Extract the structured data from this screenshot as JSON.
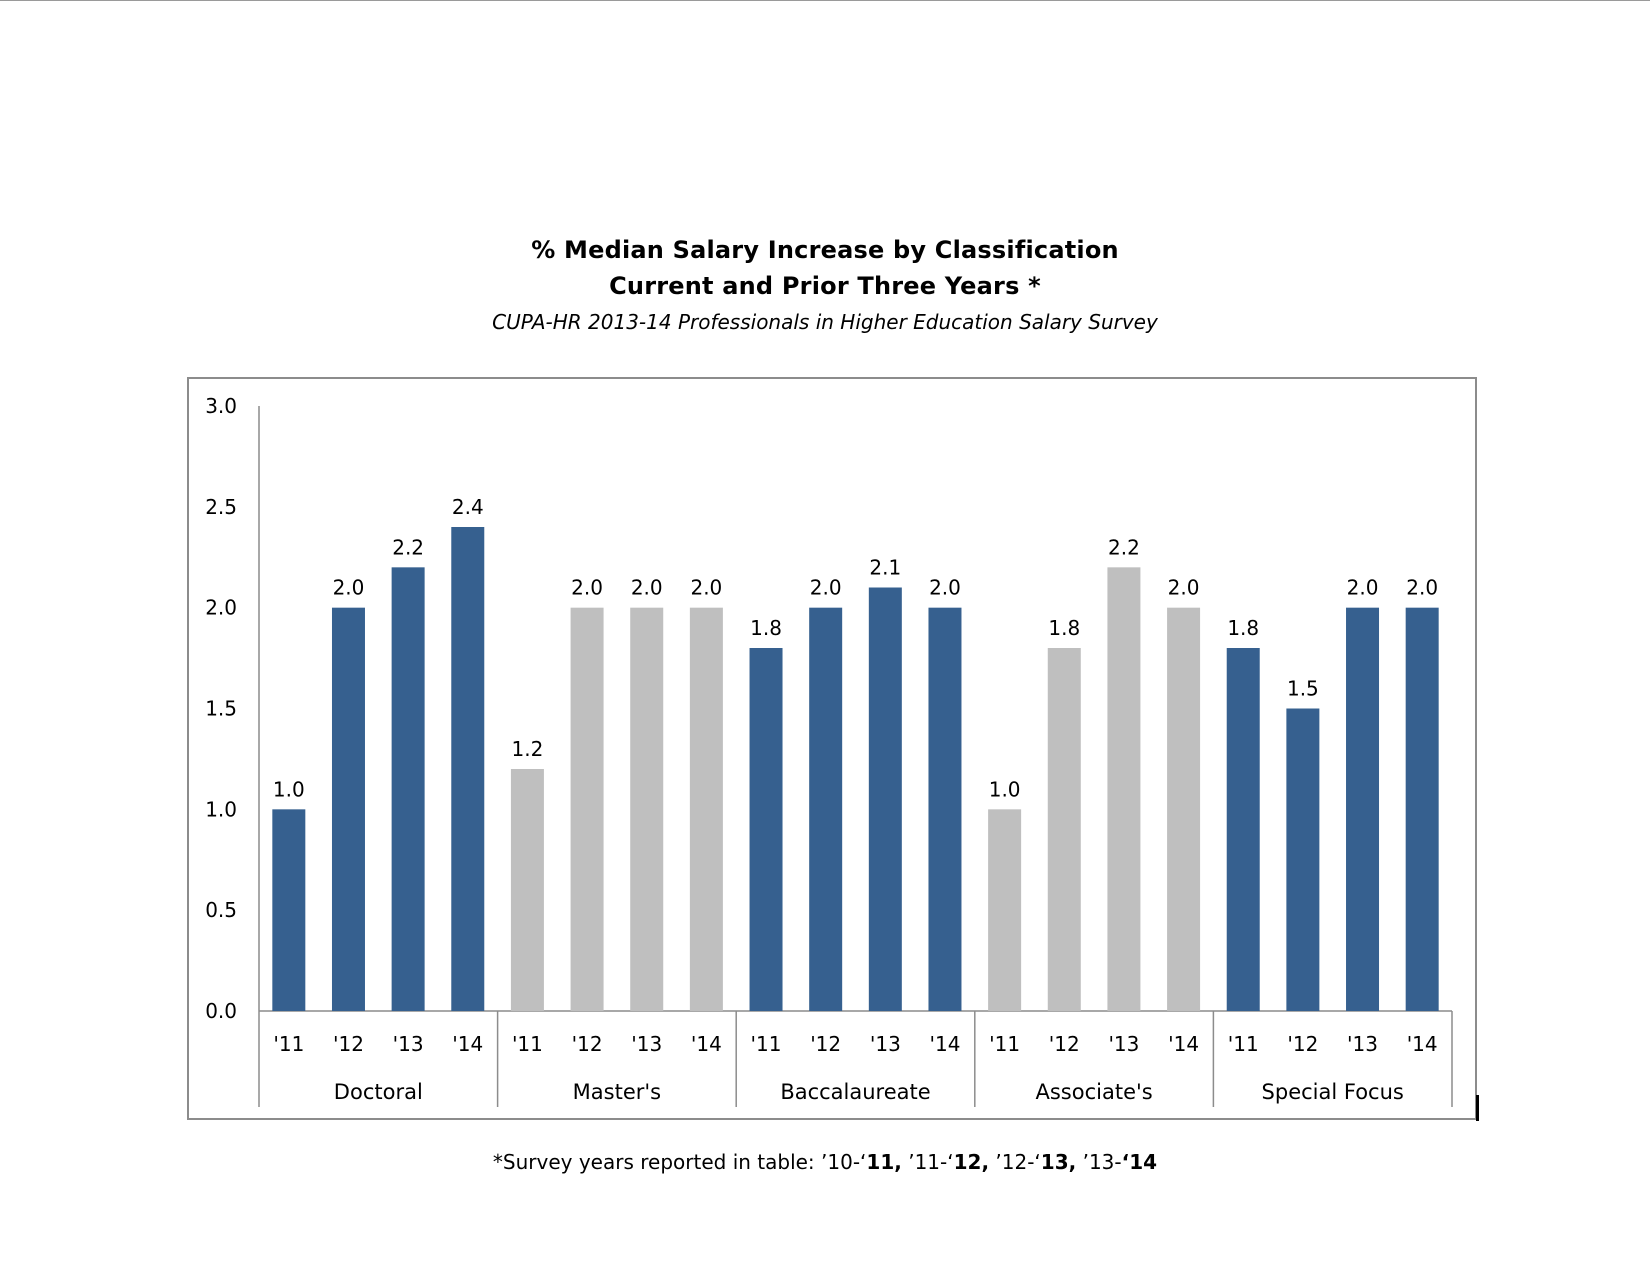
{
  "chart_data": {
    "type": "bar",
    "title_lines": [
      "% Median Salary Increase by Classification",
      "Current and Prior Three Years *"
    ],
    "subtitle": "CUPA-HR 2013-14 Professionals in Higher Education Salary Survey",
    "xlabel": "",
    "ylabel": "",
    "ylim": [
      0,
      3.0
    ],
    "yticks": [
      "0.0",
      "0.5",
      "1.0",
      "1.5",
      "2.0",
      "2.5",
      "3.0"
    ],
    "grid": false,
    "legend": "none",
    "colors": {
      "blue": "#36608f",
      "gray": "#bfbfbf"
    },
    "groups": [
      {
        "name": "Doctoral",
        "bars": [
          {
            "year": "'11",
            "value": 1.0,
            "label": "1.0",
            "color": "blue"
          },
          {
            "year": "'12",
            "value": 2.0,
            "label": "2.0",
            "color": "blue"
          },
          {
            "year": "'13",
            "value": 2.2,
            "label": "2.2",
            "color": "blue"
          },
          {
            "year": "'14",
            "value": 2.4,
            "label": "2.4",
            "color": "blue"
          }
        ]
      },
      {
        "name": "Master's",
        "bars": [
          {
            "year": "'11",
            "value": 1.2,
            "label": "1.2",
            "color": "gray"
          },
          {
            "year": "'12",
            "value": 2.0,
            "label": "2.0",
            "color": "gray"
          },
          {
            "year": "'13",
            "value": 2.0,
            "label": "2.0",
            "color": "gray"
          },
          {
            "year": "'14",
            "value": 2.0,
            "label": "2.0",
            "color": "gray"
          }
        ]
      },
      {
        "name": "Baccalaureate",
        "bars": [
          {
            "year": "'11",
            "value": 1.8,
            "label": "1.8",
            "color": "blue"
          },
          {
            "year": "'12",
            "value": 2.0,
            "label": "2.0",
            "color": "blue"
          },
          {
            "year": "'13",
            "value": 2.1,
            "label": "2.1",
            "color": "blue"
          },
          {
            "year": "'14",
            "value": 2.0,
            "label": "2.0",
            "color": "blue"
          }
        ]
      },
      {
        "name": "Associate's",
        "bars": [
          {
            "year": "'11",
            "value": 1.0,
            "label": "1.0",
            "color": "gray"
          },
          {
            "year": "'12",
            "value": 1.8,
            "label": "1.8",
            "color": "gray"
          },
          {
            "year": "'13",
            "value": 2.2,
            "label": "2.2",
            "color": "gray"
          },
          {
            "year": "'14",
            "value": 2.0,
            "label": "2.0",
            "color": "gray"
          }
        ]
      },
      {
        "name": "Special Focus",
        "bars": [
          {
            "year": "'11",
            "value": 1.8,
            "label": "1.8",
            "color": "blue"
          },
          {
            "year": "'12",
            "value": 1.5,
            "label": "1.5",
            "color": "blue"
          },
          {
            "year": "'13",
            "value": 2.0,
            "label": "2.0",
            "color": "blue"
          },
          {
            "year": "'14",
            "value": 2.0,
            "label": "2.0",
            "color": "blue"
          }
        ]
      }
    ]
  },
  "footnote": {
    "star": "*",
    "text": "Survey years reported in table: ",
    "segments": [
      {
        "text": "’10-‘",
        "bold": false
      },
      {
        "text": "11,",
        "bold": true
      },
      {
        "text": " ’11-‘",
        "bold": false
      },
      {
        "text": "12,",
        "bold": true
      },
      {
        "text": " ’12-‘",
        "bold": false
      },
      {
        "text": "13,",
        "bold": true
      },
      {
        "text": " ’13-",
        "bold": false
      },
      {
        "text": "‘14",
        "bold": true
      }
    ]
  }
}
